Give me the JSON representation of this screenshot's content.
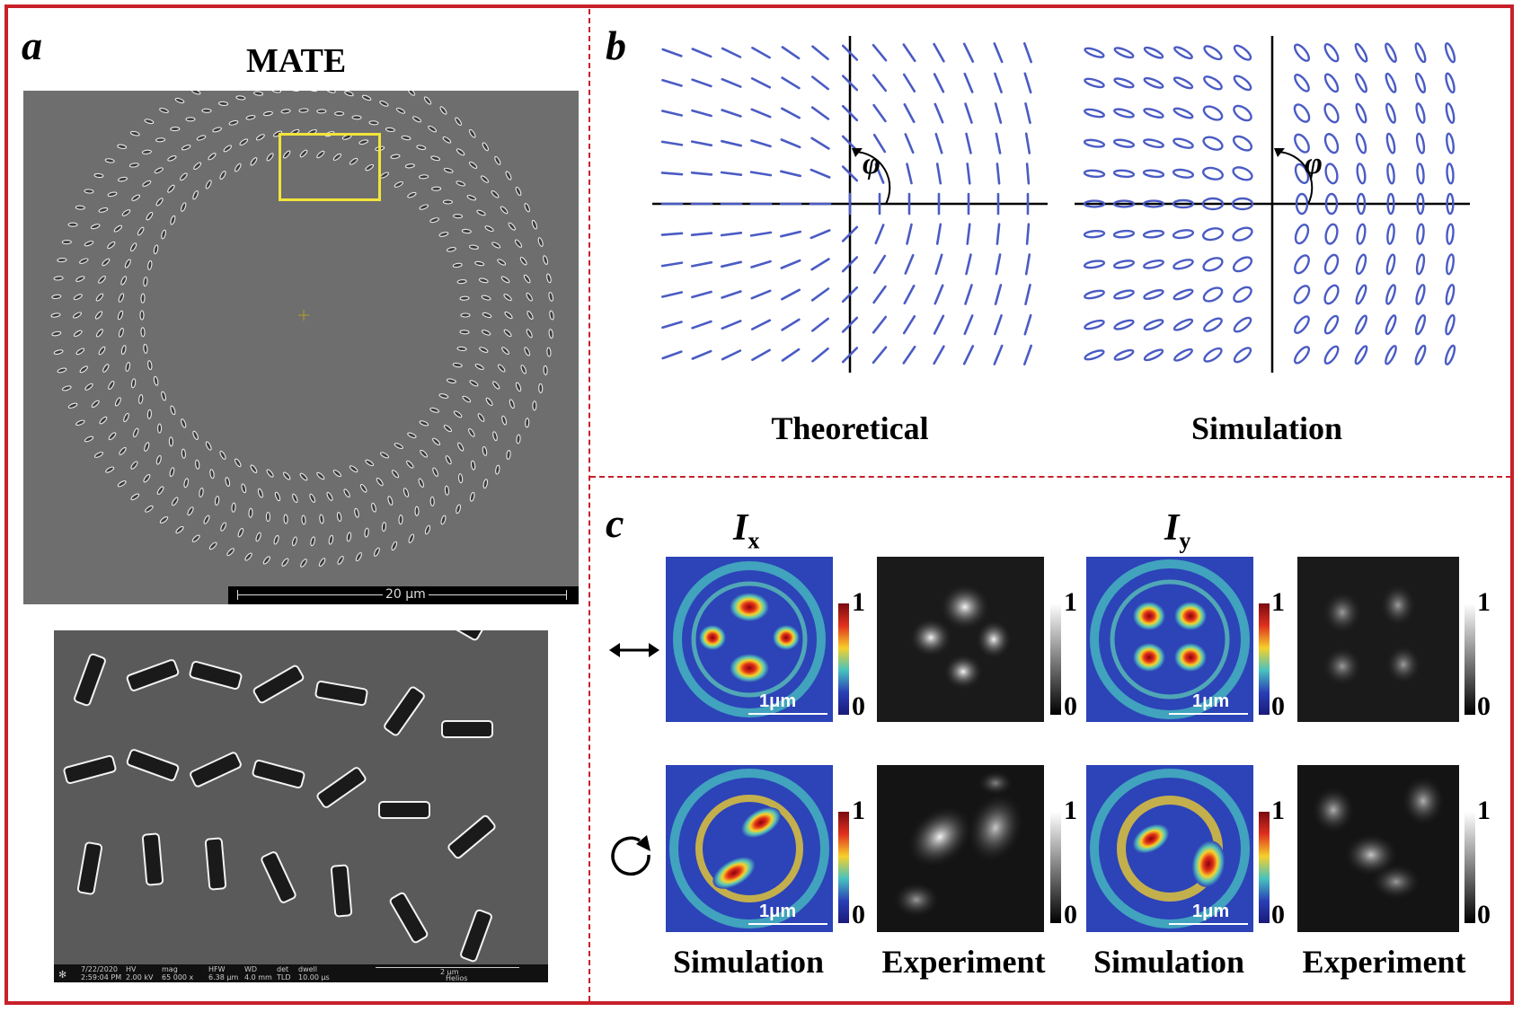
{
  "panel_a": {
    "letter": "a",
    "title": "MATE",
    "scale_bar": "20 μm",
    "zoom_info": {
      "date": "7/22/2020",
      "time": "2:59:04 PM",
      "hv_label": "HV",
      "hv": "2.00 kV",
      "mag_label": "mag",
      "mag": "65 000 x",
      "hfw_label": "HFW",
      "hfw": "6.38 μm",
      "wd_label": "WD",
      "wd": "4.0 mm",
      "det_label": "det",
      "det": "TLD",
      "dwell_label": "dwell",
      "dwell": "10.00 μs",
      "scale": "2 μm",
      "brand": "Helios"
    }
  },
  "panel_b": {
    "letter": "b",
    "angle_symbol": "φ",
    "captions": [
      "Theoretical",
      "Simulation"
    ]
  },
  "panel_c": {
    "letter": "c",
    "col_labels": [
      {
        "main": "I",
        "sub": "x"
      },
      {
        "main": "I",
        "sub": "y"
      }
    ],
    "colorbar_max": "1",
    "colorbar_min": "0",
    "scale_label": "1μm",
    "captions": [
      "Simulation",
      "Experiment",
      "Simulation",
      "Experiment"
    ],
    "row_icons": [
      "double-arrow-icon",
      "circular-arrow-icon"
    ]
  },
  "colors": {
    "border": "#c8202a",
    "vector": "#4a5bc4"
  }
}
